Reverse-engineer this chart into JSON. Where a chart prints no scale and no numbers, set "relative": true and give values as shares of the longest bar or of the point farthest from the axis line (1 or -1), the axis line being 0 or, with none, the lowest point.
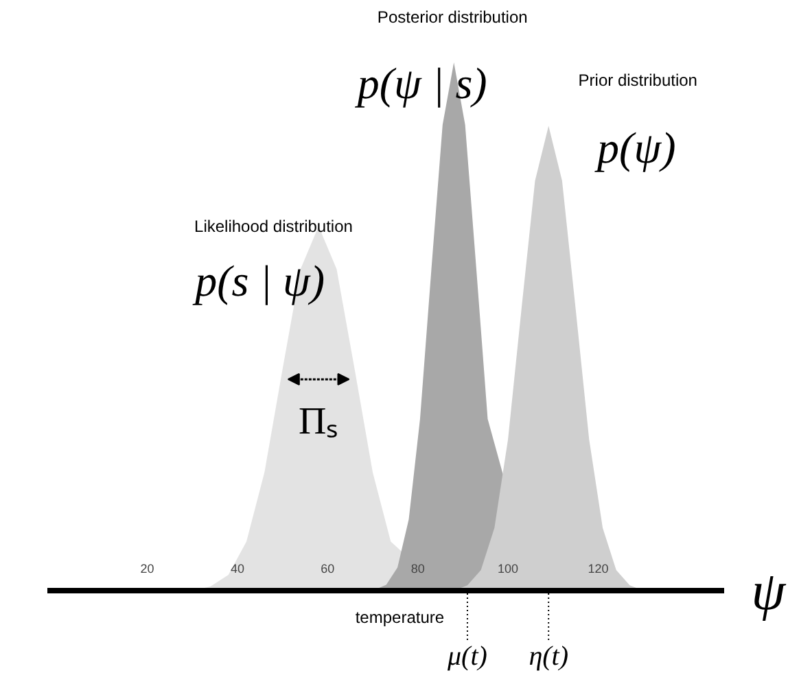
{
  "chart_data": {
    "type": "area",
    "relative": true,
    "xlabel": "ψ",
    "xlim": [
      -2,
      148
    ],
    "xticks": [
      20,
      40,
      60,
      80,
      100,
      120
    ],
    "grid": false,
    "series": [
      {
        "name": "Likelihood distribution",
        "color": "#e3e3e3",
        "x": [
          30,
          34,
          38,
          42,
          46,
          50,
          54,
          58,
          62,
          66,
          70,
          74,
          78,
          82,
          86
        ],
        "values": [
          0,
          0.008,
          0.03,
          0.093,
          0.224,
          0.419,
          0.609,
          0.69,
          0.609,
          0.419,
          0.224,
          0.093,
          null,
          null,
          0
        ]
      },
      {
        "name": "Posterior distribution",
        "color": "#a8a8a8",
        "x": [
          70,
          73,
          75.5,
          78,
          80.5,
          83,
          85.5,
          88,
          90.5,
          93,
          95.5,
          98,
          100.5,
          103,
          106
        ],
        "values": [
          0,
          0.011,
          0.044,
          0.135,
          0.325,
          0.607,
          0.882,
          1,
          0.882,
          0.607,
          0.325,
          null,
          null,
          null,
          0
        ]
      },
      {
        "name": "Prior distribution",
        "color": "#cfcfcf",
        "x": [
          88,
          91,
          94,
          97,
          100,
          103,
          106,
          109,
          112,
          115,
          118,
          121,
          124,
          127,
          130
        ],
        "values": [
          0,
          0.01,
          0.039,
          0.119,
          0.286,
          0.534,
          0.776,
          0.88,
          0.776,
          0.534,
          0.286,
          0.119,
          0.039,
          0.01,
          0
        ]
      }
    ],
    "annotations": [
      "p(s | ψ)",
      "p(ψ | s)",
      "p(ψ)",
      "Πₛ",
      "temperature"
    ],
    "ref_lines": [
      {
        "axis": "x",
        "value": 91,
        "label": "μ(t)",
        "line_style": "dotted",
        "color": "#000000"
      },
      {
        "axis": "x",
        "value": 109,
        "label": "η(t)",
        "line_style": "dotted",
        "color": "#000000"
      }
    ]
  }
}
